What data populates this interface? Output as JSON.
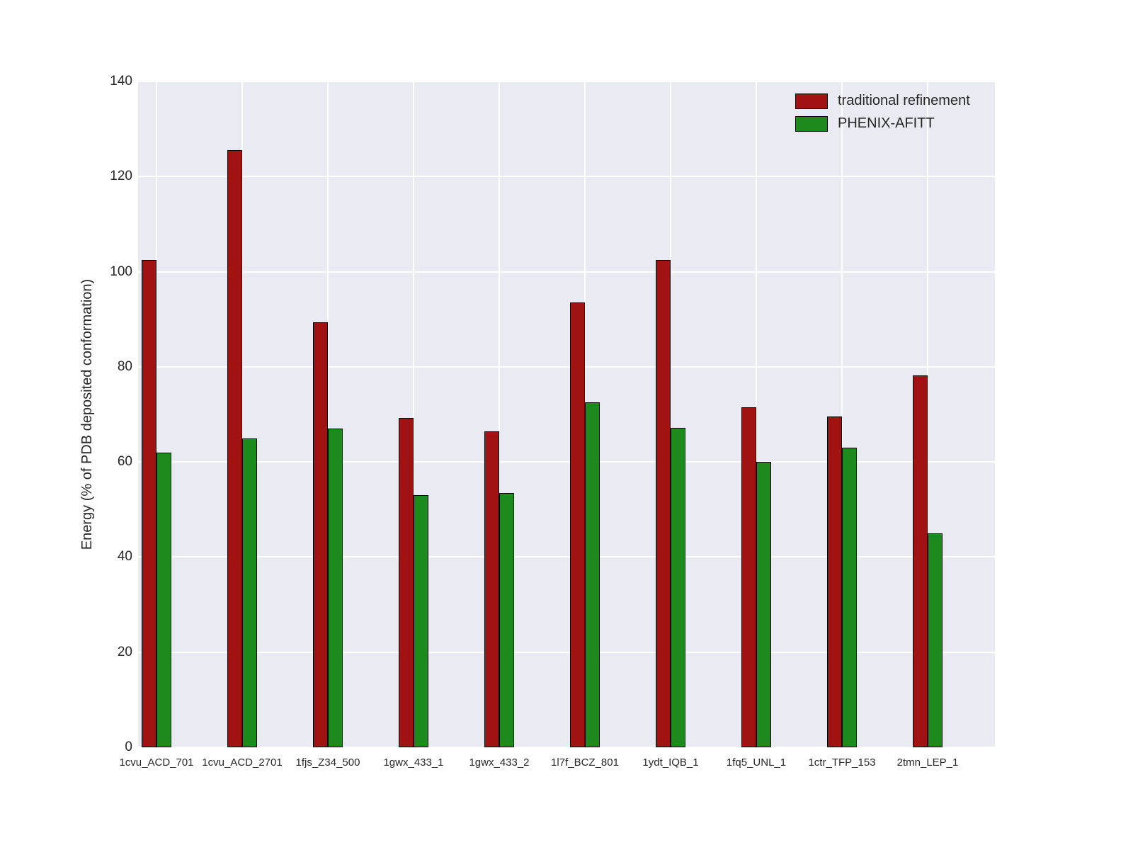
{
  "figure": {
    "background": "#ffffff",
    "plot_background": "#eaeaf2",
    "grid_color": "#ffffff",
    "bar_edge_color": "#000000",
    "text_color": "#262626"
  },
  "chart_data": {
    "type": "bar",
    "title": "",
    "xlabel": "",
    "ylabel": "Energy (% of PDB deposited conformation)",
    "ylim": [
      0,
      140
    ],
    "yticks": [
      0,
      20,
      40,
      60,
      80,
      100,
      120,
      140
    ],
    "grid": true,
    "legend_position": "upper right",
    "categories": [
      "1cvu_ACD_701",
      "1cvu_ACD_2701",
      "1fjs_Z34_500",
      "1gwx_433_1",
      "1gwx_433_2",
      "1l7f_BCZ_801",
      "1ydt_IQB_1",
      "1fq5_UNL_1",
      "1ctr_TFP_153",
      "2tmn_LEP_1"
    ],
    "series": [
      {
        "name": "traditional refinement",
        "color": "#a11212",
        "values": [
          102.5,
          125.5,
          89.3,
          69.2,
          66.5,
          93.5,
          102.5,
          71.5,
          69.5,
          78.2
        ]
      },
      {
        "name": "PHENIX-AFITT",
        "color": "#1d8a1d",
        "values": [
          62,
          65,
          67,
          53,
          53.5,
          72.5,
          67.2,
          60,
          63,
          45
        ]
      }
    ]
  }
}
